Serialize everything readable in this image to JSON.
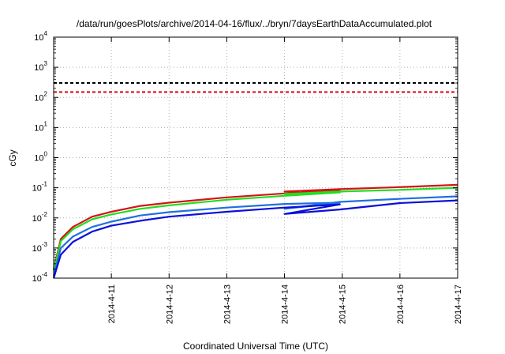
{
  "chart_data": {
    "type": "line",
    "title": "/data/run/goesPlots/archive/2014-04-16/flux/../bryn/7daysEarthDataAccumulated.plot",
    "xlabel": "Coordinated Universal Time (UTC)",
    "ylabel": "cGy",
    "y_scale": "log",
    "ylim": [
      0.0001,
      10000
    ],
    "xlim": [
      "2014-04-10",
      "2014-04-17"
    ],
    "grid": true,
    "legend": "none",
    "x_ticks": [
      "2014-4-11",
      "2014-4-12",
      "2014-4-13",
      "2014-4-14",
      "2014-4-15",
      "2014-4-16",
      "2014-4-17"
    ],
    "y_ticks": [
      {
        "value": 0.0001,
        "base": "10",
        "exp": "-4"
      },
      {
        "value": 0.001,
        "base": "10",
        "exp": "-3"
      },
      {
        "value": 0.01,
        "base": "10",
        "exp": "-2"
      },
      {
        "value": 0.1,
        "base": "10",
        "exp": "-1"
      },
      {
        "value": 1,
        "base": "10",
        "exp": "0"
      },
      {
        "value": 10,
        "base": "10",
        "exp": "1"
      },
      {
        "value": 100,
        "base": "10",
        "exp": "2"
      },
      {
        "value": 1000,
        "base": "10",
        "exp": "3"
      },
      {
        "value": 10000,
        "base": "10",
        "exp": "4"
      }
    ],
    "thresholds": [
      {
        "value": 300,
        "color": "#000000",
        "style": "dashed"
      },
      {
        "value": 150,
        "color": "#e00000",
        "style": "dashed"
      }
    ],
    "series": [
      {
        "color": "#d41414",
        "points": [
          [
            "2014-04-10 00:00",
            0.0002
          ],
          [
            "2014-04-10 03:00",
            0.002
          ],
          [
            "2014-04-10 08:00",
            0.005
          ],
          [
            "2014-04-10 16:00",
            0.011
          ],
          [
            "2014-04-11 00:00",
            0.016
          ],
          [
            "2014-04-11 12:00",
            0.025
          ],
          [
            "2014-04-12 00:00",
            0.032
          ],
          [
            "2014-04-13 00:00",
            0.048
          ],
          [
            "2014-04-14 00:00",
            0.065
          ],
          [
            "2014-04-14 23:00",
            0.085
          ],
          [
            "2014-04-14 00:00",
            0.075
          ],
          [
            "2014-04-14 23:00",
            0.09
          ],
          [
            "2014-04-16 00:00",
            0.105
          ],
          [
            "2014-04-17 00:00",
            0.125
          ]
        ]
      },
      {
        "color": "#22dd22",
        "points": [
          [
            "2014-04-10 00:00",
            0.00018
          ],
          [
            "2014-04-10 03:00",
            0.0017
          ],
          [
            "2014-04-10 08:00",
            0.0042
          ],
          [
            "2014-04-10 16:00",
            0.009
          ],
          [
            "2014-04-11 00:00",
            0.013
          ],
          [
            "2014-04-11 12:00",
            0.02
          ],
          [
            "2014-04-12 00:00",
            0.026
          ],
          [
            "2014-04-13 00:00",
            0.04
          ],
          [
            "2014-04-14 00:00",
            0.054
          ],
          [
            "2014-04-14 23:00",
            0.07
          ],
          [
            "2014-04-14 00:00",
            0.062
          ],
          [
            "2014-04-14 23:00",
            0.075
          ],
          [
            "2014-04-16 00:00",
            0.085
          ],
          [
            "2014-04-17 00:00",
            0.1
          ]
        ]
      },
      {
        "color": "#1f6fe0",
        "points": [
          [
            "2014-04-10 00:00",
            0.00012
          ],
          [
            "2014-04-10 03:00",
            0.001
          ],
          [
            "2014-04-10 08:00",
            0.0024
          ],
          [
            "2014-04-10 16:00",
            0.005
          ],
          [
            "2014-04-11 00:00",
            0.0075
          ],
          [
            "2014-04-11 12:00",
            0.012
          ],
          [
            "2014-04-12 00:00",
            0.0155
          ],
          [
            "2014-04-13 00:00",
            0.022
          ],
          [
            "2014-04-14 00:00",
            0.029
          ],
          [
            "2014-04-14 23:00",
            0.032
          ],
          [
            "2014-04-14 00:00",
            0.02
          ],
          [
            "2014-04-14 23:00",
            0.034
          ],
          [
            "2014-04-16 00:00",
            0.043
          ],
          [
            "2014-04-17 00:00",
            0.052
          ]
        ]
      },
      {
        "color": "#0a10d8",
        "points": [
          [
            "2014-04-10 00:00",
            0.0001
          ],
          [
            "2014-04-10 03:00",
            0.0006
          ],
          [
            "2014-04-10 08:00",
            0.0016
          ],
          [
            "2014-04-10 16:00",
            0.0035
          ],
          [
            "2014-04-11 00:00",
            0.0055
          ],
          [
            "2014-04-11 12:00",
            0.008
          ],
          [
            "2014-04-12 00:00",
            0.011
          ],
          [
            "2014-04-13 00:00",
            0.016
          ],
          [
            "2014-04-14 00:00",
            0.022
          ],
          [
            "2014-04-14 23:00",
            0.028
          ],
          [
            "2014-04-14 00:00",
            0.0135
          ],
          [
            "2014-04-14 23:00",
            0.019
          ],
          [
            "2014-04-16 00:00",
            0.031
          ],
          [
            "2014-04-17 00:00",
            0.038
          ]
        ]
      }
    ]
  }
}
